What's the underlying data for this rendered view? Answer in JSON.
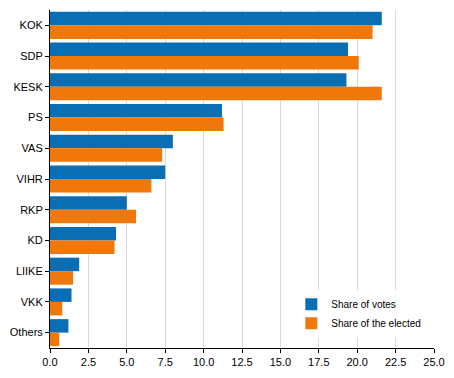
{
  "chart_data": {
    "type": "bar",
    "orientation": "horizontal",
    "categories": [
      "KOK",
      "SDP",
      "KESK",
      "PS",
      "VAS",
      "VIHR",
      "RKP",
      "KD",
      "LIIKE",
      "VKK",
      "Others"
    ],
    "series": [
      {
        "name": "Share of votes",
        "color": "#0a6eb4",
        "values": [
          21.6,
          19.4,
          19.3,
          11.2,
          8.0,
          7.5,
          5.0,
          4.3,
          1.9,
          1.4,
          1.2
        ]
      },
      {
        "name": "Share of the elected",
        "color": "#f0780a",
        "values": [
          21.0,
          20.1,
          21.6,
          11.3,
          7.3,
          6.6,
          5.6,
          4.2,
          1.5,
          0.8,
          0.6
        ]
      }
    ],
    "xlim": [
      0,
      25
    ],
    "xticks": [
      {
        "value": 0,
        "label": "0.0"
      },
      {
        "value": 2.5,
        "label": "2.5"
      },
      {
        "value": 5,
        "label": "5.0"
      },
      {
        "value": 7.5,
        "label": "7.5"
      },
      {
        "value": 10,
        "label": "10.0"
      },
      {
        "value": 12.5,
        "label": "12.5"
      },
      {
        "value": 15,
        "label": "15.0"
      },
      {
        "value": 17.5,
        "label": "17.5"
      },
      {
        "value": 20,
        "label": "20.0"
      },
      {
        "value": 22.5,
        "label": "22.5"
      },
      {
        "value": 25,
        "label": "25.0"
      }
    ],
    "grid": true,
    "legend": "lower right"
  }
}
